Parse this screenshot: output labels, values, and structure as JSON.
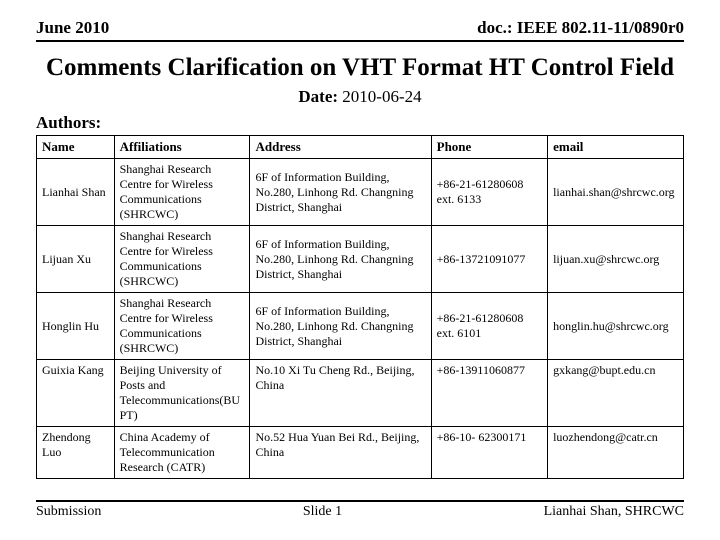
{
  "header": {
    "left": "June 2010",
    "right": "doc.: IEEE 802.11-11/0890r0"
  },
  "title": "Comments Clarification on VHT Format HT Control Field",
  "date": {
    "label": "Date:",
    "value": "2010-06-24"
  },
  "authors_label": "Authors:",
  "table": {
    "columns": [
      "Name",
      "Affiliations",
      "Address",
      "Phone",
      "email"
    ],
    "rows": [
      [
        "Lianhai Shan",
        "Shanghai Research Centre for Wireless Communications (SHRCWC)",
        "6F of Information Building, No.280, Linhong Rd. Changning District, Shanghai",
        "+86-21-61280608 ext. 6133",
        "lianhai.shan@shrcwc.org"
      ],
      [
        "Lijuan Xu",
        "Shanghai Research Centre for Wireless Communications (SHRCWC)",
        "6F of Information Building, No.280, Linhong Rd. Changning District, Shanghai",
        "+86-13721091077",
        "lijuan.xu@shrcwc.org"
      ],
      [
        "Honglin Hu",
        "Shanghai Research Centre for Wireless Communications (SHRCWC)",
        "6F of Information Building, No.280, Linhong Rd. Changning District, Shanghai",
        "+86-21-61280608 ext. 6101",
        "honglin.hu@shrcwc.org"
      ],
      [
        "Guixia Kang",
        "Beijing University of Posts and Telecommunications(BUPT)",
        "No.10 Xi Tu Cheng Rd., Beijing, China",
        "+86-13911060877",
        "gxkang@bupt.edu.cn"
      ],
      [
        "Zhendong Luo",
        "China Academy of Telecommunication Research (CATR)",
        "No.52 Hua Yuan Bei Rd., Beijing, China",
        "+86-10- 62300171",
        "luozhendong@catr.cn"
      ]
    ]
  },
  "footer": {
    "left": "Submission",
    "center": "Slide 1",
    "right": "Lianhai Shan, SHRCWC"
  }
}
